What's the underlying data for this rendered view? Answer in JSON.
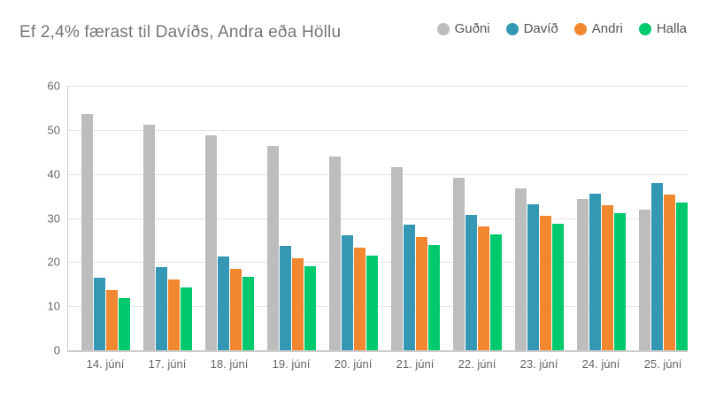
{
  "title": "Ef 2,4% færast til Davíðs, Andra eða Höllu",
  "chart_data": {
    "type": "bar",
    "title": "Ef 2,4% færast til Davíðs, Andra eða Höllu",
    "categories": [
      "14. júní",
      "17. júní",
      "18. júní",
      "19. júní",
      "20. júní",
      "21. júní",
      "22. júní",
      "23. júní",
      "24. júní",
      "25. júní"
    ],
    "series": [
      {
        "name": "Guðni",
        "color": "#bdbdbd",
        "values": [
          53.6,
          51.2,
          48.8,
          46.4,
          44.0,
          41.6,
          39.2,
          36.8,
          34.4,
          32.0
        ]
      },
      {
        "name": "Davíð",
        "color": "#3498b5",
        "values": [
          16.4,
          18.8,
          21.2,
          23.6,
          26.0,
          28.4,
          30.8,
          33.2,
          35.6,
          38.0
        ]
      },
      {
        "name": "Andri",
        "color": "#f1882f",
        "values": [
          13.7,
          16.1,
          18.5,
          20.9,
          23.3,
          25.7,
          28.1,
          30.5,
          32.9,
          35.3
        ]
      },
      {
        "name": "Halla",
        "color": "#00ca6d",
        "values": [
          11.9,
          14.3,
          16.7,
          19.1,
          21.5,
          23.9,
          26.3,
          28.7,
          31.1,
          33.5
        ]
      }
    ],
    "xlabel": "",
    "ylabel": "",
    "ylim": [
      0,
      60
    ],
    "yticks": [
      0,
      10,
      20,
      30,
      40,
      50,
      60
    ],
    "grid": true,
    "legend_position": "top-right"
  },
  "colors": {
    "title_text": "#757575",
    "axis_text": "#666666",
    "gridline": "#e4e4e4",
    "axis_line": "#cccccc",
    "background": "#ffffff"
  }
}
